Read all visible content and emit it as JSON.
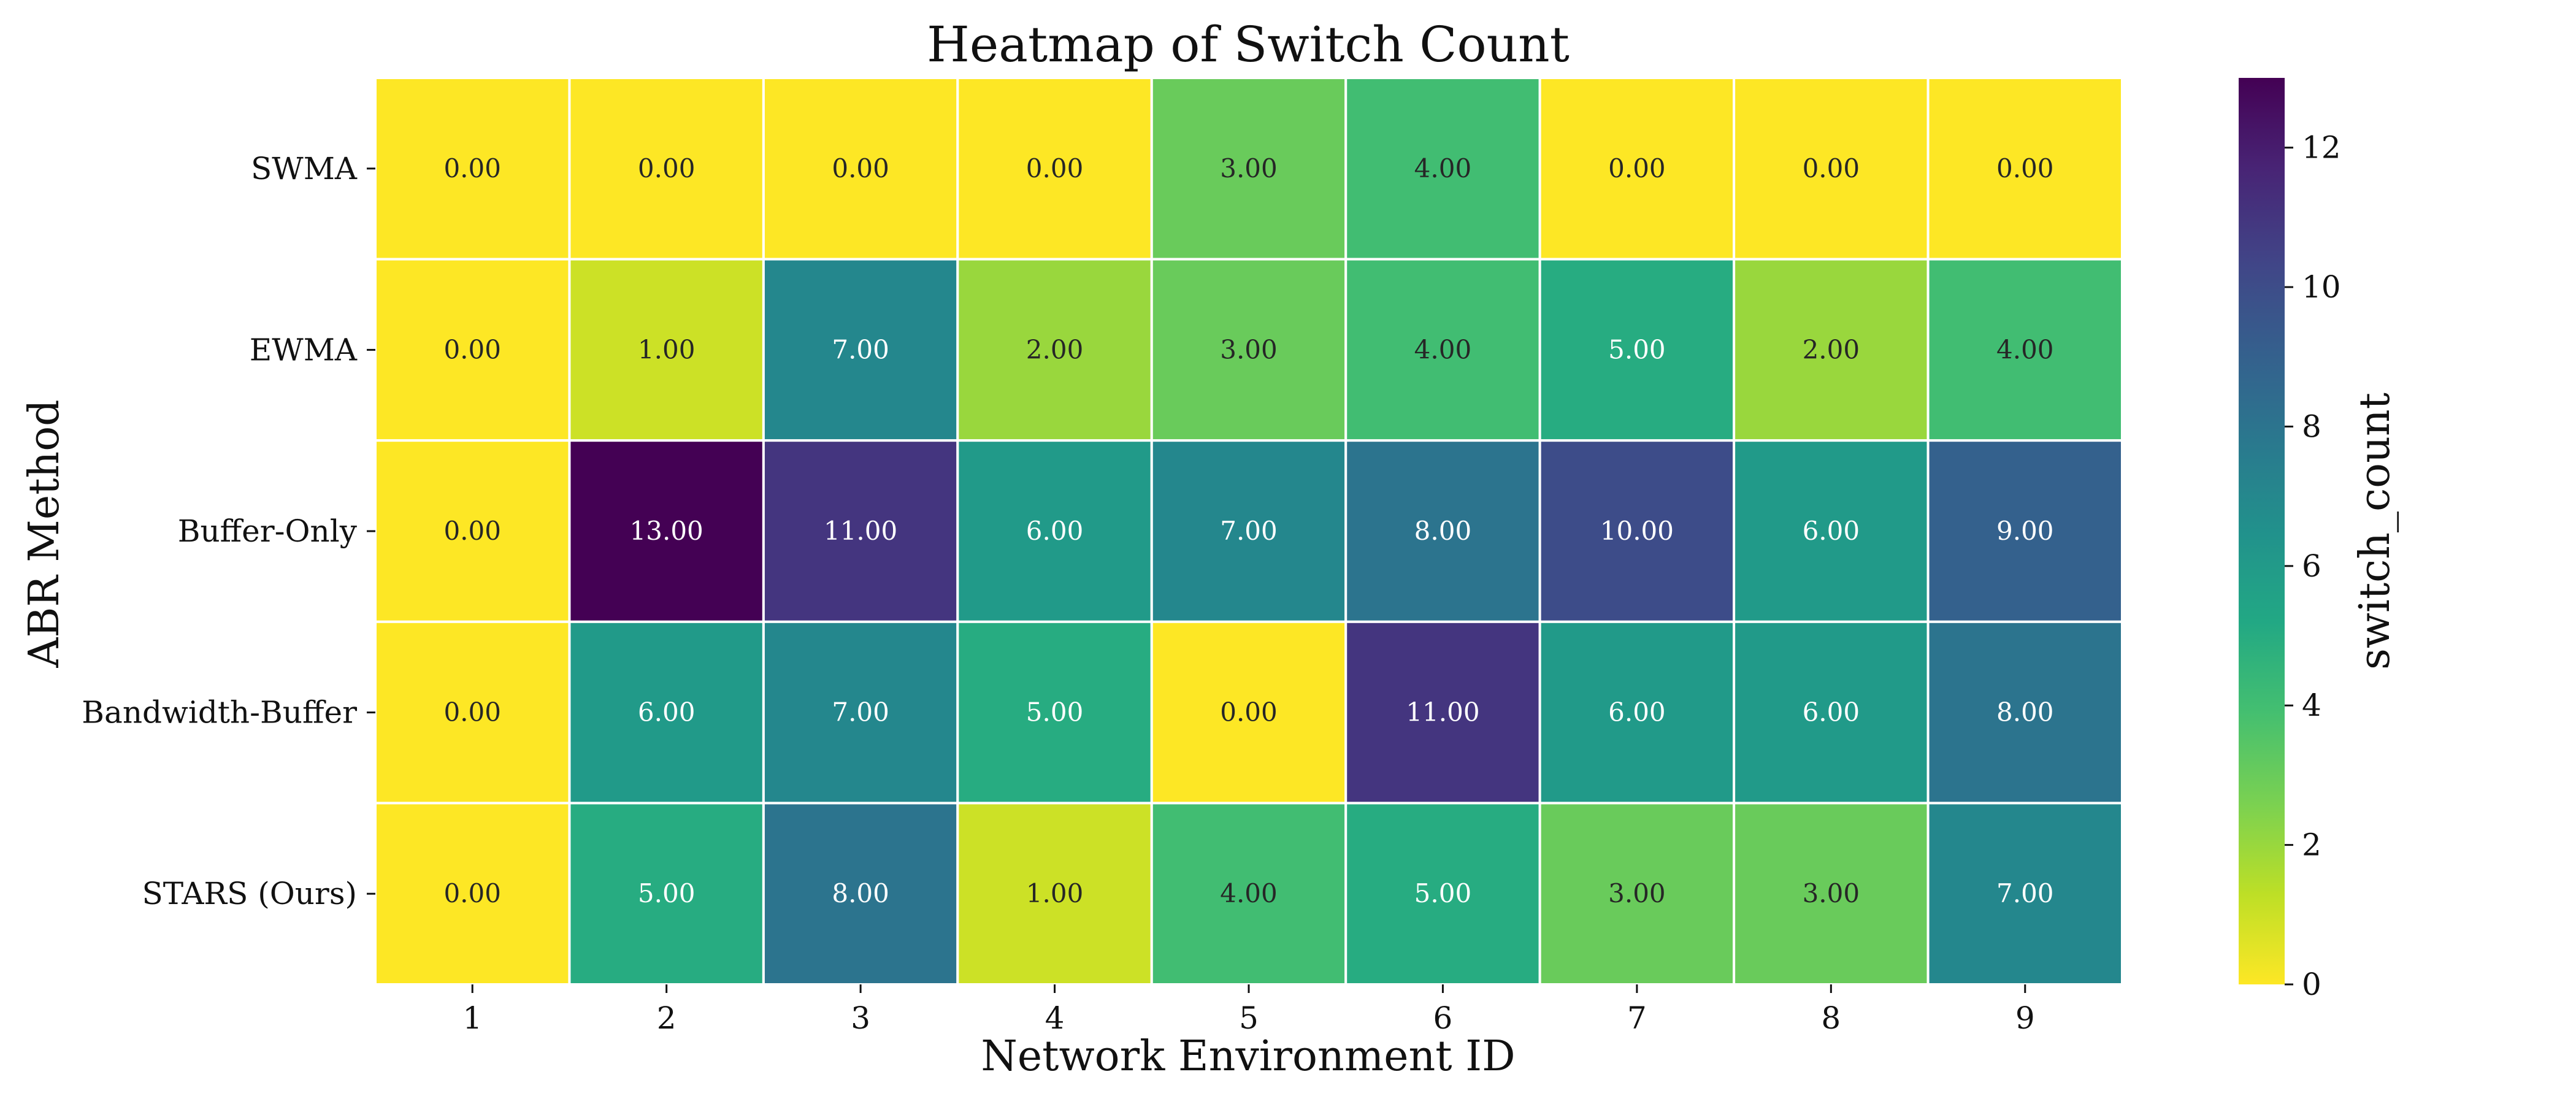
{
  "chart_data": {
    "type": "heatmap",
    "title": "Heatmap of Switch Count",
    "xlabel": "Network Environment ID",
    "ylabel": "ABR Method",
    "x_categories": [
      "1",
      "2",
      "3",
      "4",
      "5",
      "6",
      "7",
      "8",
      "9"
    ],
    "y_categories": [
      "SWMA",
      "EWMA",
      "Buffer-Only",
      "Bandwidth-Buffer",
      "STARS (Ours)"
    ],
    "values": [
      [
        0,
        0,
        0,
        0,
        3,
        4,
        0,
        0,
        0
      ],
      [
        0,
        1,
        7,
        2,
        3,
        4,
        5,
        2,
        4
      ],
      [
        0,
        13,
        11,
        6,
        7,
        8,
        10,
        6,
        9
      ],
      [
        0,
        6,
        7,
        5,
        0,
        11,
        6,
        6,
        8
      ],
      [
        0,
        5,
        8,
        1,
        4,
        5,
        3,
        3,
        7
      ]
    ],
    "cell_labels": [
      [
        "0.00",
        "0.00",
        "0.00",
        "0.00",
        "3.00",
        "4.00",
        "0.00",
        "0.00",
        "0.00"
      ],
      [
        "0.00",
        "1.00",
        "7.00",
        "2.00",
        "3.00",
        "4.00",
        "5.00",
        "2.00",
        "4.00"
      ],
      [
        "0.00",
        "13.00",
        "11.00",
        "6.00",
        "7.00",
        "8.00",
        "10.00",
        "6.00",
        "9.00"
      ],
      [
        "0.00",
        "6.00",
        "7.00",
        "5.00",
        "0.00",
        "11.00",
        "6.00",
        "6.00",
        "8.00"
      ],
      [
        "0.00",
        "5.00",
        "8.00",
        "1.00",
        "4.00",
        "5.00",
        "3.00",
        "3.00",
        "7.00"
      ]
    ],
    "colormap": "viridis_r",
    "vmin": 0,
    "vmax": 13,
    "colorbar": {
      "label": "switch_count",
      "ticks": [
        0,
        2,
        4,
        6,
        8,
        10,
        12
      ],
      "tick_labels": [
        "0",
        "2",
        "4",
        "6",
        "8",
        "10",
        "12"
      ]
    },
    "grid": false,
    "cell_separator_color": "#ffffff"
  }
}
